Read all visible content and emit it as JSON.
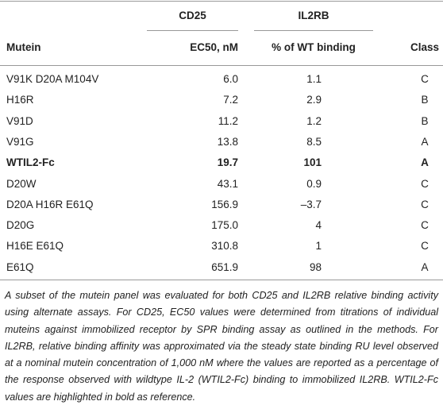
{
  "table": {
    "groups": [
      "CD25",
      "IL2RB"
    ],
    "columns": [
      "Mutein",
      "EC50, nM",
      "% of WT binding",
      "Class"
    ],
    "rows": [
      [
        "V91K D20A M104V",
        "6.0",
        "1.1",
        "C"
      ],
      [
        "H16R",
        "7.2",
        "2.9",
        "B"
      ],
      [
        "V91D",
        "11.2",
        "1.2",
        "B"
      ],
      [
        "V91G",
        "13.8",
        "8.5",
        "A"
      ],
      [
        "WTIL2-Fc",
        "19.7",
        "101",
        "A"
      ],
      [
        "D20W",
        "43.1",
        "0.9",
        "C"
      ],
      [
        "D20A H16R E61Q",
        "156.9",
        "–3.7",
        "C"
      ],
      [
        "D20G",
        "175.0",
        "4",
        "C"
      ],
      [
        "H16E E61Q",
        "310.8",
        "1",
        "C"
      ],
      [
        "E61Q",
        "651.9",
        "98",
        "A"
      ]
    ],
    "bold_row": 4,
    "footnote": "A subset of the mutein panel was evaluated for both CD25 and IL2RB relative binding activity using alternate assays. For CD25, EC50 values were determined from titrations of individual muteins against immobilized receptor by SPR binding assay as outlined in the methods. For IL2RB, relative binding affinity was approximated via the steady state binding RU level observed at a nominal mutein concentration of 1,000 nM where the values are reported as a percentage of the response observed with wildtype IL-2 (WTIL2-Fc) binding to immobilized IL2RB. WTIL2-Fc values are highlighted in bold as reference."
  }
}
